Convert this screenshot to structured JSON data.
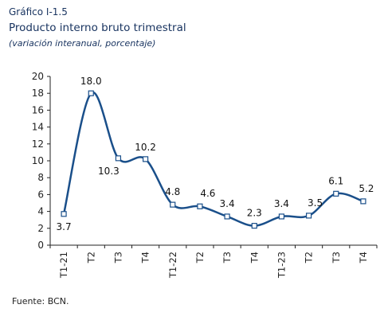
{
  "figure_label": "Gráfico I-1.5",
  "title": "Producto interno bruto trimestral",
  "subtitle": "(variación interanual, porcentaje)",
  "source": "Fuente: BCN.",
  "colors": {
    "line": "#1a4f8a",
    "marker_fill": "#ffffff",
    "axis": "#222222",
    "text": "#1a3561"
  },
  "chart_data": {
    "type": "line",
    "categories": [
      "T1-21",
      "T2",
      "T3",
      "T4",
      "T1-22",
      "T2",
      "T3",
      "T4",
      "T1-23",
      "T2",
      "T3",
      "T4"
    ],
    "series": [
      {
        "values": [
          3.7,
          18.0,
          10.3,
          10.2,
          4.8,
          4.6,
          3.4,
          2.3,
          3.4,
          3.5,
          6.1,
          5.2
        ],
        "labels": [
          "3.7",
          "18.0",
          "10.3",
          "10.2",
          "4.8",
          "4.6",
          "3.4",
          "2.3",
          "3.4",
          "3.5",
          "6.1",
          "5.2"
        ]
      }
    ],
    "ylim": [
      0,
      20
    ],
    "yticks": [
      0,
      2,
      4,
      6,
      8,
      10,
      12,
      14,
      16,
      18,
      20
    ],
    "xlabel": "",
    "ylabel": "",
    "grid": false,
    "line_style": "smooth",
    "markers": "square"
  }
}
